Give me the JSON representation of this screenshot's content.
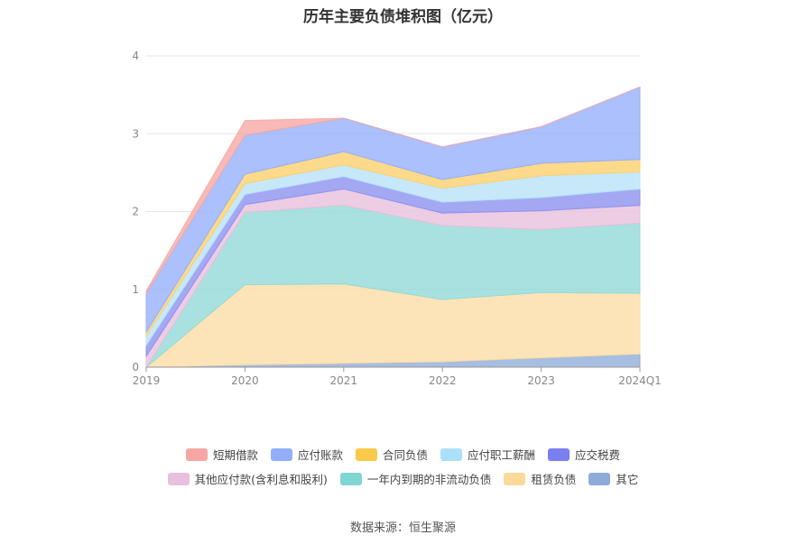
{
  "chart_data": {
    "type": "area",
    "stacked": true,
    "title": "历年主要负债堆积图（亿元）",
    "x": [
      "2019",
      "2020",
      "2021",
      "2022",
      "2023",
      "2024Q1"
    ],
    "ylim": [
      0,
      4
    ],
    "yticks": [
      "0",
      "1",
      "2",
      "3",
      "4"
    ],
    "grid": true,
    "legend_position": "bottom",
    "series": [
      {
        "name": "其它",
        "color": "#8eaad8",
        "values": [
          0.0,
          0.03,
          0.05,
          0.07,
          0.12,
          0.17
        ]
      },
      {
        "name": "租赁负债",
        "color": "#fcdca4",
        "values": [
          0.0,
          1.03,
          1.02,
          0.8,
          0.84,
          0.78
        ]
      },
      {
        "name": "一年内到期的非流动负债",
        "color": "#8fd9d6",
        "values": [
          0.0,
          0.93,
          1.01,
          0.95,
          0.81,
          0.9
        ]
      },
      {
        "name": "其他应付款(含利息和股利)",
        "color": "#e8bfdc",
        "values": [
          0.14,
          0.1,
          0.21,
          0.16,
          0.24,
          0.23
        ]
      },
      {
        "name": "应交税费",
        "color": "#8b8ff0",
        "values": [
          0.14,
          0.13,
          0.16,
          0.14,
          0.17,
          0.21
        ]
      },
      {
        "name": "应付职工薪酬",
        "color": "#b6e2f7",
        "values": [
          0.12,
          0.14,
          0.15,
          0.18,
          0.28,
          0.22
        ]
      },
      {
        "name": "合同负债",
        "color": "#fdd06a",
        "values": [
          0.05,
          0.12,
          0.17,
          0.11,
          0.16,
          0.16
        ]
      },
      {
        "name": "应付账款",
        "color": "#93aefb",
        "values": [
          0.5,
          0.5,
          0.43,
          0.42,
          0.47,
          0.93
        ]
      },
      {
        "name": "短期借款",
        "color": "#f6a7a3",
        "values": [
          0.03,
          0.19,
          0.0,
          0.0,
          0.0,
          0.0
        ]
      }
    ]
  },
  "legend_rows": [
    [
      {
        "name": "短期借款",
        "color": "#f6a7a3"
      },
      {
        "name": "应付账款",
        "color": "#93aefb"
      },
      {
        "name": "合同负债",
        "color": "#fdc94a"
      },
      {
        "name": "应付职工薪酬",
        "color": "#ace0f9"
      },
      {
        "name": "应交税费",
        "color": "#7b7ff0"
      }
    ],
    [
      {
        "name": "其他应付款(含利息和股利)",
        "color": "#e8bfdc"
      },
      {
        "name": "一年内到期的非流动负债",
        "color": "#7fd6d2"
      },
      {
        "name": "租赁负债",
        "color": "#fcd99a"
      },
      {
        "name": "其它",
        "color": "#8eaad8"
      }
    ]
  ],
  "source": "数据来源：恒生聚源"
}
